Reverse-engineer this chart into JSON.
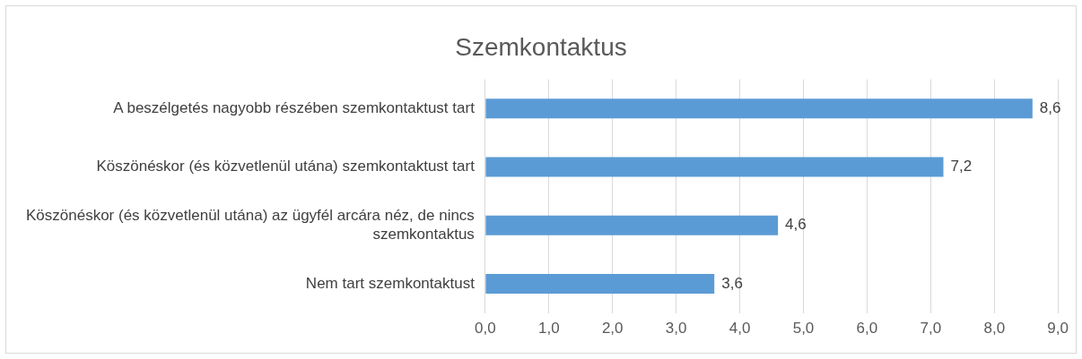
{
  "chart_data": {
    "type": "bar",
    "orientation": "horizontal",
    "title": "Szemkontaktus",
    "categories": [
      "A beszélgetés nagyobb részében szemkontaktust tart",
      "Köszönéskor (és közvetlenül utána) szemkontaktust tart",
      "Köszönéskor (és közvetlenül utána) az ügyfél arcára néz, de nincs szemkontaktus",
      "Nem tart szemkontaktust"
    ],
    "values": [
      8.6,
      7.2,
      4.6,
      3.6
    ],
    "value_labels": [
      "8,6",
      "7,2",
      "4,6",
      "3,6"
    ],
    "color": "#5b9bd5",
    "xlim": [
      0,
      9
    ],
    "xticks": [
      {
        "value": 0,
        "label": "0,0"
      },
      {
        "value": 1,
        "label": "1,0"
      },
      {
        "value": 2,
        "label": "2,0"
      },
      {
        "value": 3,
        "label": "3,0"
      },
      {
        "value": 4,
        "label": "4,0"
      },
      {
        "value": 5,
        "label": "5,0"
      },
      {
        "value": 6,
        "label": "6,0"
      },
      {
        "value": 7,
        "label": "7,0"
      },
      {
        "value": 8,
        "label": "8,0"
      },
      {
        "value": 9,
        "label": "9,0"
      }
    ],
    "grid": "x",
    "legend": false
  }
}
